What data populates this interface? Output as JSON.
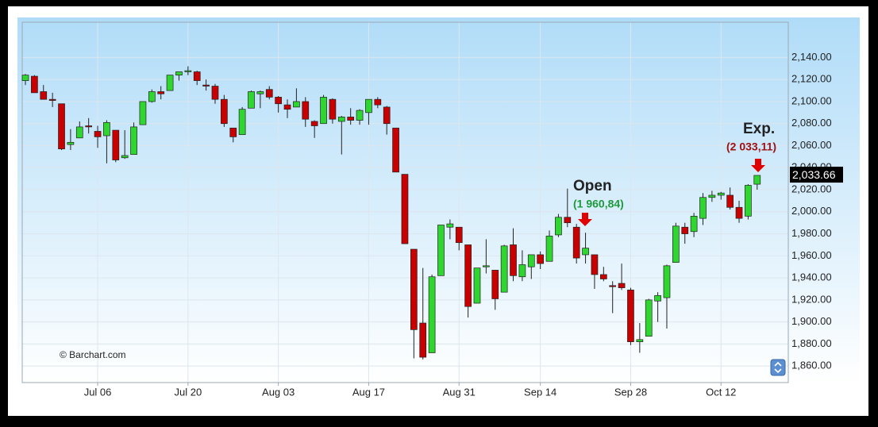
{
  "chart_data": {
    "type": "candlestick",
    "up_color": "#2fd62f",
    "down_color": "#c80000",
    "grid": true,
    "ylim": [
      1845,
      2172
    ],
    "yticks": [
      {
        "value": 1860,
        "label": "1,860.00"
      },
      {
        "value": 1880,
        "label": "1,880.00"
      },
      {
        "value": 1900,
        "label": "1,900.00"
      },
      {
        "value": 1920,
        "label": "1,920.00"
      },
      {
        "value": 1940,
        "label": "1,940.00"
      },
      {
        "value": 1960,
        "label": "1,960.00"
      },
      {
        "value": 1980,
        "label": "1,980.00"
      },
      {
        "value": 2000,
        "label": "2,000.00"
      },
      {
        "value": 2020,
        "label": "2,020.00"
      },
      {
        "value": 2040,
        "label": "2,040.00"
      },
      {
        "value": 2060,
        "label": "2,060.00"
      },
      {
        "value": 2080,
        "label": "2,080.00"
      },
      {
        "value": 2100,
        "label": "2,100.00"
      },
      {
        "value": 2120,
        "label": "2,120.00"
      },
      {
        "value": 2140,
        "label": "2,140.00"
      }
    ],
    "last_price": {
      "value": 2033.66,
      "label": "2,033.66"
    },
    "categories": [
      null,
      null,
      null,
      null,
      null,
      null,
      null,
      null,
      "Jul 06",
      null,
      null,
      null,
      null,
      null,
      null,
      null,
      null,
      null,
      "Jul 20",
      null,
      null,
      null,
      null,
      null,
      null,
      null,
      null,
      null,
      "Aug 03",
      null,
      null,
      null,
      null,
      null,
      null,
      null,
      null,
      null,
      "Aug 17",
      null,
      null,
      null,
      null,
      null,
      null,
      null,
      null,
      null,
      "Aug 31",
      null,
      null,
      null,
      null,
      null,
      null,
      null,
      null,
      "Sep 14",
      null,
      null,
      null,
      null,
      null,
      null,
      null,
      null,
      null,
      "Sep 28",
      null,
      null,
      null,
      null,
      null,
      null,
      null,
      null,
      null,
      "Oct 12",
      null,
      null,
      null,
      null
    ],
    "open": [
      2119,
      2123,
      2109,
      2102,
      2098,
      2061,
      2067,
      2078,
      2073,
      2069,
      2074,
      2049,
      2052,
      2079,
      2100,
      2109,
      2110,
      2124,
      2127,
      2127,
      2115,
      2114,
      2102,
      2076,
      2070,
      2094,
      2107,
      2111,
      2104,
      2097,
      2095,
      2100,
      2082,
      2080,
      2102,
      2082,
      2086,
      2083,
      2090,
      2102,
      2095,
      2076,
      2034,
      1966,
      1899,
      1872,
      1942,
      1986,
      1986,
      1970,
      1917,
      1950,
      1947,
      1927,
      1970,
      1941,
      1950,
      1961,
      1955,
      1979,
      1995,
      1986,
      1961,
      1961,
      1943,
      1933,
      1935,
      1929,
      1882,
      1887,
      1919,
      1922,
      1954,
      1986,
      1982,
      1994,
      2013,
      2015,
      2015,
      2004,
      1996,
      2025
    ],
    "high": [
      2125,
      2124,
      2115,
      2108,
      2098,
      2075,
      2082,
      2085,
      2078,
      2083,
      2074,
      2074,
      2081,
      2100,
      2111,
      2114,
      2124,
      2127,
      2132,
      2128,
      2120,
      2116,
      2106,
      2076,
      2095,
      2110,
      2110,
      2114,
      2105,
      2102,
      2112,
      2104,
      2083,
      2106,
      2103,
      2087,
      2094,
      2093,
      2102,
      2104,
      2096,
      2076,
      2034,
      1966,
      1949,
      1943,
      1988,
      1993,
      1986,
      1970,
      1948,
      1975,
      1947,
      1970,
      1985,
      1965,
      1961,
      1964,
      1983,
      1998,
      2021,
      1989,
      1981,
      1961,
      1950,
      1937,
      1953,
      1931,
      1899,
      1921,
      1927,
      1952,
      1990,
      1990,
      1999,
      2017,
      2019,
      2018,
      2022,
      2010,
      2025,
      2033
    ],
    "low": [
      2115,
      2108,
      2102,
      2095,
      2056,
      2056,
      2067,
      2071,
      2058,
      2044,
      2045,
      2048,
      2052,
      2079,
      2099,
      2102,
      2110,
      2119,
      2124,
      2115,
      2110,
      2098,
      2077,
      2063,
      2070,
      2094,
      2094,
      2102,
      2090,
      2085,
      2095,
      2077,
      2067,
      2080,
      2080,
      2052,
      2079,
      2079,
      2079,
      2094,
      2070,
      2036,
      1971,
      1867,
      1866,
      1872,
      1942,
      1975,
      1965,
      1904,
      1917,
      1944,
      1911,
      1927,
      1937,
      1937,
      1939,
      1948,
      1955,
      1977,
      1986,
      1953,
      1953,
      1930,
      1937,
      1908,
      1929,
      1879,
      1872,
      1887,
      1900,
      1894,
      1954,
      1971,
      1977,
      1988,
      2009,
      2011,
      2002,
      1990,
      1993,
      2020
    ],
    "close": [
      2124,
      2108,
      2102,
      2101,
      2057,
      2063,
      2077,
      2077,
      2068,
      2081,
      2047,
      2051,
      2077,
      2100,
      2109,
      2107,
      2124,
      2127,
      2128,
      2119,
      2114,
      2102,
      2080,
      2068,
      2093,
      2109,
      2109,
      2104,
      2098,
      2093,
      2100,
      2084,
      2078,
      2104,
      2084,
      2086,
      2083,
      2092,
      2102,
      2097,
      2080,
      2036,
      1971,
      1893,
      1868,
      1941,
      1988,
      1989,
      1972,
      1914,
      1949,
      1951,
      1921,
      1969,
      1942,
      1952,
      1961,
      1953,
      1978,
      1995,
      1990,
      1958,
      1967,
      1943,
      1939,
      1932,
      1931,
      1882,
      1884,
      1920,
      1924,
      1951,
      1987,
      1980,
      1996,
      2013,
      2015,
      2017,
      2004,
      1994,
      2024,
      2033
    ],
    "annotations": [
      {
        "title": "Open",
        "subtitle": "(1 960,84)"
      },
      {
        "title": "Exp.",
        "subtitle": "(2 033,11)"
      }
    ],
    "credit": "© Barchart.com"
  }
}
